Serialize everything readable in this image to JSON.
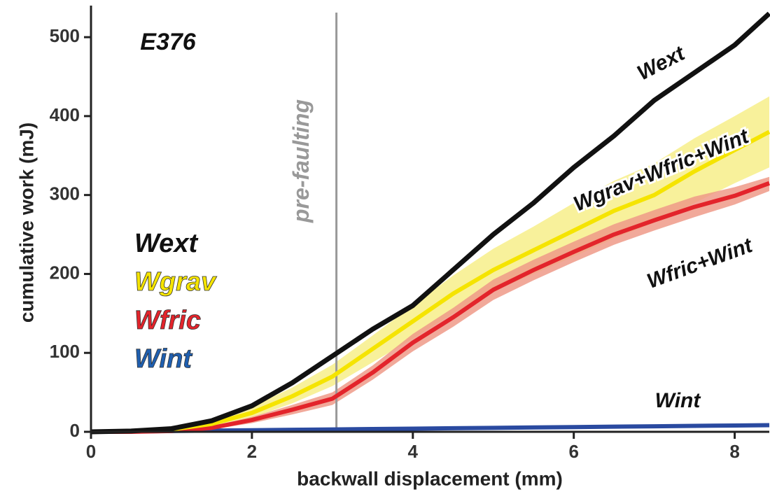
{
  "chart_data": {
    "type": "line",
    "title": "E376",
    "xlabel": "backwall displacement (mm)",
    "ylabel": "cumulative work (mJ)",
    "x": [
      0,
      0.5,
      1,
      1.5,
      2,
      2.5,
      3,
      3.5,
      4,
      4.5,
      5,
      5.5,
      6,
      6.5,
      7,
      7.5,
      8,
      8.43
    ],
    "xlim": [
      0,
      8.43
    ],
    "xticks": [
      0,
      2,
      4,
      6,
      8
    ],
    "ylim": [
      0,
      540
    ],
    "yticks": [
      0,
      100,
      200,
      300,
      400,
      500
    ],
    "marker_line": {
      "x": 3.05,
      "label": "pre-faulting",
      "color": "#999999"
    },
    "series": [
      {
        "name": "Wext",
        "color": "#111111",
        "values": [
          0,
          1,
          4,
          14,
          33,
          62,
          96,
          130,
          160,
          205,
          250,
          290,
          335,
          375,
          420,
          455,
          490,
          530
        ]
      },
      {
        "name": "Wgrav+Wfric+Wint",
        "color": "#f5e400",
        "band_color": "#f7ef8a",
        "values": [
          0,
          1,
          3,
          10,
          24,
          45,
          70,
          105,
          140,
          175,
          205,
          230,
          255,
          280,
          300,
          330,
          357,
          380
        ],
        "band_low": [
          0,
          0,
          2,
          7,
          18,
          36,
          58,
          88,
          118,
          150,
          178,
          200,
          222,
          245,
          265,
          290,
          315,
          335
        ],
        "band_high": [
          0,
          2,
          5,
          14,
          32,
          56,
          85,
          122,
          160,
          198,
          232,
          260,
          290,
          318,
          340,
          372,
          400,
          425
        ]
      },
      {
        "name": "Wfric+Wint",
        "color": "#e3242b",
        "band_color": "#ef9a88",
        "values": [
          0,
          0,
          1,
          5,
          15,
          28,
          42,
          75,
          113,
          145,
          180,
          205,
          228,
          250,
          268,
          285,
          299,
          315
        ],
        "band_low": [
          0,
          0,
          0,
          3,
          11,
          22,
          34,
          66,
          102,
          133,
          167,
          192,
          215,
          237,
          255,
          272,
          288,
          305
        ],
        "band_high": [
          0,
          1,
          2,
          7,
          19,
          34,
          50,
          84,
          124,
          157,
          193,
          218,
          241,
          263,
          281,
          298,
          310,
          323
        ]
      },
      {
        "name": "Wint",
        "color": "#2a4aa0",
        "values": [
          0,
          0.5,
          1,
          1.5,
          2,
          2.5,
          3,
          3.5,
          4,
          4.5,
          5,
          5.5,
          6,
          6.5,
          7,
          7.5,
          8,
          8.4
        ]
      }
    ],
    "legend": [
      {
        "name": "Wext",
        "color": "#111111"
      },
      {
        "name": "Wgrav",
        "color": "#f5e400"
      },
      {
        "name": "Wfric",
        "color": "#e3242b"
      },
      {
        "name": "Wint",
        "color": "#1f5fb0"
      }
    ]
  }
}
